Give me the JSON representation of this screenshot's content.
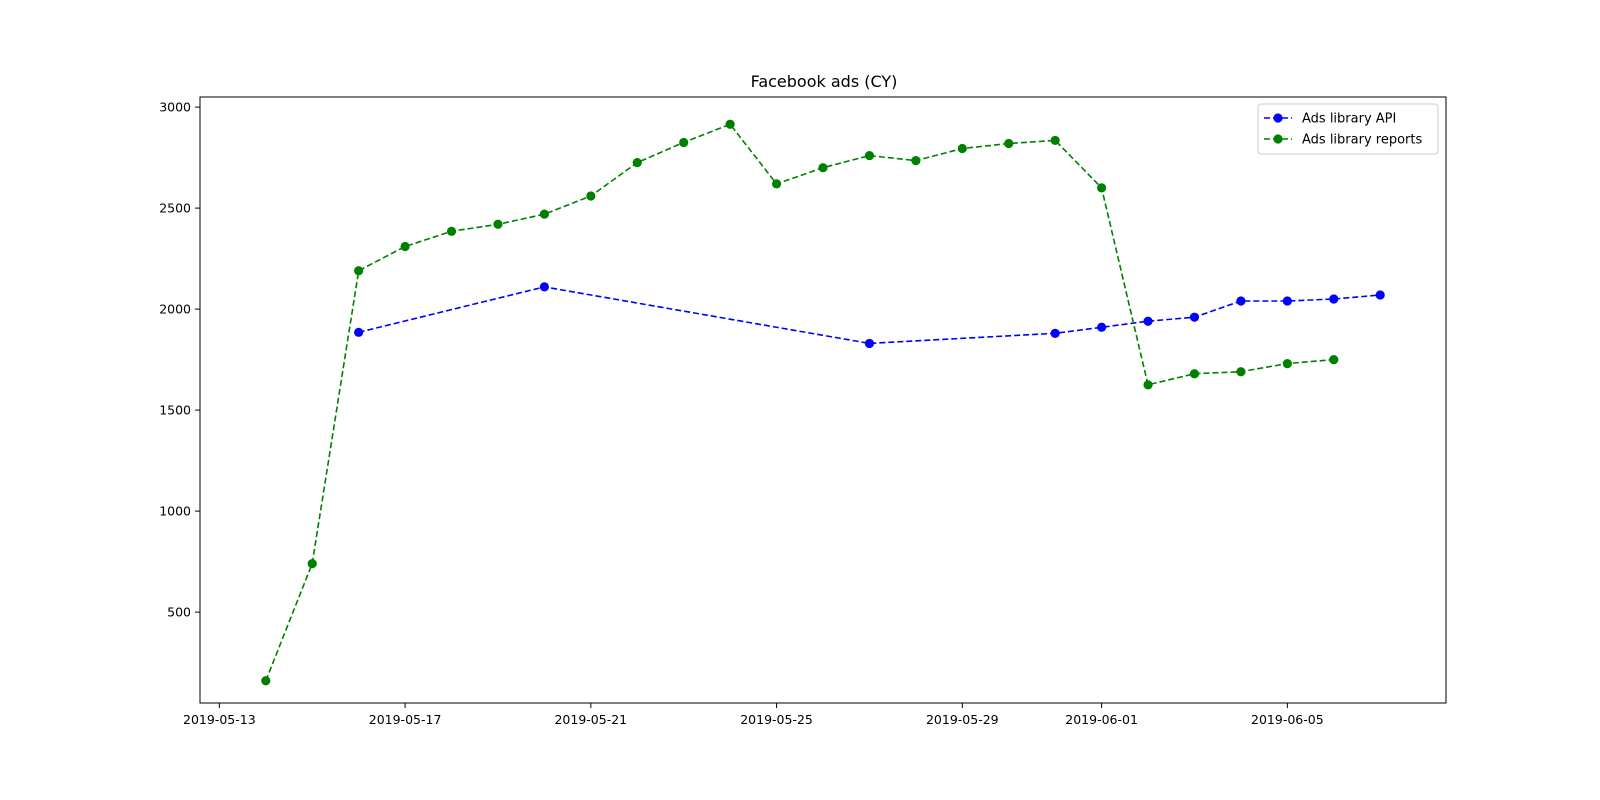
{
  "chart_data": {
    "type": "line",
    "title": "Facebook ads (CY)",
    "xlabel": "",
    "ylabel": "",
    "x_axis_type": "date",
    "xlim": [
      "2019-05-12T14:00",
      "2019-06-08T10:00"
    ],
    "ylim": [
      50,
      3050
    ],
    "x_ticks": [
      "2019-05-13",
      "2019-05-17",
      "2019-05-21",
      "2019-05-25",
      "2019-05-29",
      "2019-06-01",
      "2019-06-05"
    ],
    "y_ticks": [
      500,
      1000,
      1500,
      2000,
      2500,
      3000
    ],
    "grid": false,
    "legend_position": "top-right",
    "series": [
      {
        "name": "Ads library API",
        "color": "#0000ff",
        "line_style": "dashed",
        "marker": "circle",
        "points": [
          {
            "x": "2019-05-16",
            "y": 1885
          },
          {
            "x": "2019-05-20",
            "y": 2110
          },
          {
            "x": "2019-05-27",
            "y": 1830
          },
          {
            "x": "2019-05-31",
            "y": 1880
          },
          {
            "x": "2019-06-01",
            "y": 1910
          },
          {
            "x": "2019-06-02",
            "y": 1940
          },
          {
            "x": "2019-06-03",
            "y": 1960
          },
          {
            "x": "2019-06-04",
            "y": 2040
          },
          {
            "x": "2019-06-05",
            "y": 2040
          },
          {
            "x": "2019-06-06",
            "y": 2050
          },
          {
            "x": "2019-06-07",
            "y": 2070
          }
        ]
      },
      {
        "name": "Ads library reports",
        "color": "#008000",
        "line_style": "dashed",
        "marker": "circle",
        "points": [
          {
            "x": "2019-05-14",
            "y": 160
          },
          {
            "x": "2019-05-15",
            "y": 740
          },
          {
            "x": "2019-05-16",
            "y": 2190
          },
          {
            "x": "2019-05-17",
            "y": 2310
          },
          {
            "x": "2019-05-18",
            "y": 2385
          },
          {
            "x": "2019-05-19",
            "y": 2420
          },
          {
            "x": "2019-05-20",
            "y": 2470
          },
          {
            "x": "2019-05-21",
            "y": 2560
          },
          {
            "x": "2019-05-22",
            "y": 2725
          },
          {
            "x": "2019-05-23",
            "y": 2825
          },
          {
            "x": "2019-05-24",
            "y": 2915
          },
          {
            "x": "2019-05-25",
            "y": 2620
          },
          {
            "x": "2019-05-26",
            "y": 2700
          },
          {
            "x": "2019-05-27",
            "y": 2760
          },
          {
            "x": "2019-05-28",
            "y": 2735
          },
          {
            "x": "2019-05-29",
            "y": 2795
          },
          {
            "x": "2019-05-30",
            "y": 2820
          },
          {
            "x": "2019-05-31",
            "y": 2835
          },
          {
            "x": "2019-06-01",
            "y": 2600
          },
          {
            "x": "2019-06-02",
            "y": 1625
          },
          {
            "x": "2019-06-03",
            "y": 1680
          },
          {
            "x": "2019-06-04",
            "y": 1690
          },
          {
            "x": "2019-06-05",
            "y": 1730
          },
          {
            "x": "2019-06-06",
            "y": 1750
          }
        ]
      }
    ]
  }
}
